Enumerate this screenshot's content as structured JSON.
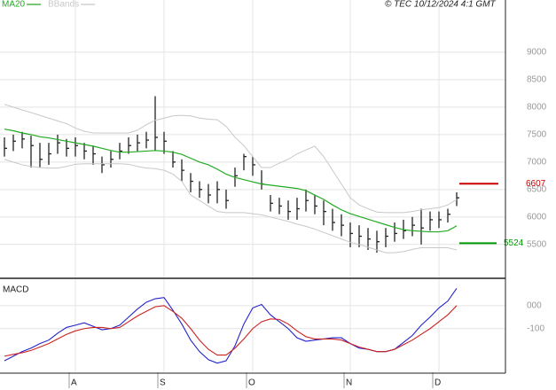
{
  "header": {
    "copyright": "© TEC 10/12/2024 4:1 GMT"
  },
  "chart_data": [
    {
      "type": "ohlc",
      "categories": [
        null,
        null,
        null,
        null,
        null,
        null,
        null,
        null,
        "A",
        null,
        null,
        null,
        null,
        null,
        null,
        null,
        null,
        null,
        "S",
        null,
        null,
        null,
        null,
        null,
        null,
        null,
        null,
        null,
        "O",
        null,
        null,
        null,
        null,
        null,
        null,
        null,
        null,
        null,
        null,
        "N",
        null,
        null,
        null,
        null,
        null,
        null,
        null,
        null,
        null,
        "D",
        null,
        null
      ],
      "high": [
        7450,
        7500,
        7550,
        7480,
        7350,
        7350,
        7500,
        7420,
        7450,
        7350,
        7300,
        7100,
        7200,
        7350,
        7450,
        7500,
        7550,
        8200,
        7550,
        7200,
        7050,
        6800,
        6650,
        6600,
        6650,
        6500,
        6900,
        7150,
        7100,
        6850,
        6400,
        6350,
        6300,
        6350,
        6500,
        6400,
        6300,
        6150,
        6050,
        5900,
        5850,
        5800,
        5750,
        5800,
        5900,
        5950,
        6000,
        6150,
        6100,
        6100,
        6150,
        6450
      ],
      "low": [
        7100,
        7200,
        7250,
        6900,
        6900,
        6950,
        7150,
        7100,
        7100,
        7050,
        6950,
        6800,
        6900,
        7050,
        7150,
        7200,
        7250,
        7200,
        7150,
        6900,
        6650,
        6450,
        6350,
        6250,
        6250,
        6150,
        6550,
        6850,
        6750,
        6500,
        6100,
        6050,
        5950,
        5950,
        6100,
        6050,
        5850,
        5750,
        5650,
        5450,
        5450,
        5400,
        5350,
        5450,
        5550,
        5600,
        5650,
        5500,
        5750,
        5800,
        5900,
        6200
      ],
      "close": [
        7250,
        7380,
        7420,
        7300,
        7050,
        7150,
        7350,
        7250,
        7300,
        7200,
        7150,
        6950,
        7050,
        7200,
        7300,
        7350,
        7400,
        7450,
        7380,
        7000,
        6850,
        6650,
        6500,
        6400,
        6500,
        6300,
        6750,
        7100,
        6950,
        6600,
        6250,
        6200,
        6100,
        6150,
        6300,
        6200,
        6100,
        5900,
        5850,
        5700,
        5650,
        5600,
        5550,
        5650,
        5700,
        5750,
        5850,
        5800,
        5950,
        5950,
        6050,
        6350
      ],
      "series": [
        {
          "name": "MA20",
          "color": "#22aa22",
          "values": [
            7600,
            7570,
            7530,
            7500,
            7460,
            7440,
            7410,
            7380,
            7350,
            7320,
            7290,
            7250,
            7210,
            7180,
            7180,
            7190,
            7200,
            7210,
            7200,
            7180,
            7140,
            7070,
            7000,
            6950,
            6870,
            6780,
            6720,
            6680,
            6640,
            6600,
            6580,
            6560,
            6540,
            6520,
            6480,
            6400,
            6320,
            6220,
            6130,
            6060,
            6010,
            5960,
            5910,
            5860,
            5810,
            5770,
            5750,
            5740,
            5730,
            5730,
            5750,
            5840
          ]
        },
        {
          "name": "BBands",
          "color": "#c8c8c8",
          "upper": [
            8050,
            8000,
            7950,
            7900,
            7850,
            7800,
            7750,
            7700,
            7620,
            7560,
            7530,
            7530,
            7530,
            7530,
            7530,
            7580,
            7680,
            7760,
            7800,
            7840,
            7850,
            7840,
            7800,
            7780,
            7770,
            7650,
            7450,
            7300,
            7100,
            6900,
            6900,
            6980,
            7050,
            7150,
            7220,
            7290,
            7100,
            6850,
            6600,
            6350,
            6220,
            6150,
            6090,
            6080,
            6080,
            6080,
            6100,
            6130,
            6150,
            6170,
            6220,
            6320
          ],
          "lower": [
            7050,
            7000,
            6950,
            6920,
            6900,
            6890,
            6890,
            6920,
            6960,
            6970,
            6970,
            6970,
            6970,
            6970,
            6960,
            6920,
            6890,
            6880,
            6850,
            6780,
            6650,
            6400,
            6300,
            6200,
            6100,
            6080,
            6080,
            6080,
            6060,
            6040,
            6000,
            5960,
            5920,
            5870,
            5830,
            5780,
            5720,
            5660,
            5600,
            5540,
            5500,
            5450,
            5400,
            5350,
            5350,
            5370,
            5410,
            5440,
            5440,
            5440,
            5440,
            5400
          ]
        }
      ],
      "levels": [
        {
          "value": 6607,
          "color": "#cc0000"
        },
        {
          "value": 5524,
          "color": "#009900"
        }
      ],
      "ylim": [
        4900,
        9950
      ],
      "yticks": [
        5500,
        6000,
        6500,
        7000,
        7500,
        8000,
        8500,
        9000
      ],
      "grid": true
    },
    {
      "type": "line",
      "title": "MACD",
      "series": [
        {
          "color": "#2222cc",
          "values": [
            -240,
            -220,
            -200,
            -185,
            -165,
            -150,
            -120,
            -95,
            -85,
            -75,
            -90,
            -105,
            -100,
            -85,
            -50,
            -15,
            15,
            30,
            35,
            -20,
            -80,
            -150,
            -200,
            -235,
            -250,
            -240,
            -175,
            -80,
            -10,
            5,
            -40,
            -70,
            -100,
            -140,
            -155,
            -150,
            -145,
            -140,
            -140,
            -165,
            -185,
            -190,
            -200,
            -200,
            -190,
            -160,
            -130,
            -85,
            -50,
            -10,
            20,
            75
          ]
        },
        {
          "color": "#cc2222",
          "values": [
            -220,
            -212,
            -205,
            -195,
            -180,
            -165,
            -145,
            -125,
            -110,
            -100,
            -95,
            -95,
            -100,
            -95,
            -70,
            -45,
            -25,
            -5,
            0,
            -25,
            -55,
            -100,
            -150,
            -190,
            -215,
            -215,
            -185,
            -145,
            -100,
            -70,
            -58,
            -60,
            -80,
            -110,
            -135,
            -145,
            -145,
            -145,
            -150,
            -165,
            -180,
            -190,
            -200,
            -200,
            -190,
            -170,
            -150,
            -125,
            -100,
            -70,
            -40,
            0
          ]
        }
      ],
      "ylim": [
        -290,
        115
      ],
      "yticks": [
        {
          "value": 0,
          "label": "000"
        },
        -100
      ],
      "grid": true
    }
  ]
}
